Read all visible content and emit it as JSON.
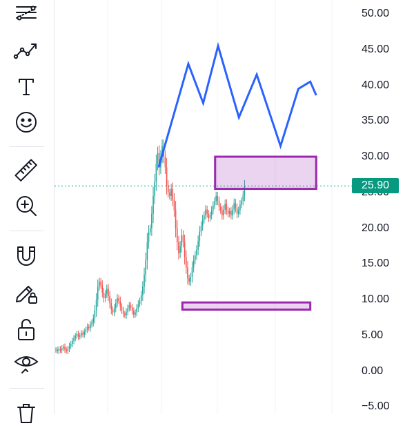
{
  "toolbar": {
    "tools": [
      {
        "name": "trend-line-tool-icon"
      },
      {
        "name": "pattern-tool-icon"
      },
      {
        "name": "text-tool-icon"
      },
      {
        "name": "emoji-tool-icon"
      },
      {
        "name": "measure-ruler-icon"
      },
      {
        "name": "zoom-in-icon"
      },
      {
        "name": "magnet-icon"
      },
      {
        "name": "lock-drawing-icon"
      },
      {
        "name": "unlock-icon"
      },
      {
        "name": "eye-visibility-icon"
      },
      {
        "name": "trash-icon"
      }
    ]
  },
  "price_axis": {
    "labels": [
      "50.00",
      "45.00",
      "40.00",
      "35.00",
      "30.00",
      "25.00",
      "20.00",
      "15.00",
      "10.00",
      "5.00",
      "0.00",
      "−5.00"
    ],
    "last_price": "25.90"
  },
  "colors": {
    "up": "#26a69a",
    "down": "#ef5350",
    "drawing_line": "#2962ff",
    "zone_border": "#9c27b0",
    "zone_fill": "rgba(156,39,176,0.2)",
    "last_price": "#089981",
    "grid": "#f0f3fa",
    "icon": "#131722"
  },
  "chart_data": {
    "type": "candlestick",
    "ylim": [
      -6,
      52
    ],
    "last_price": 25.9,
    "closes": [
      3.0,
      2.8,
      3.1,
      2.9,
      3.2,
      3.4,
      3.0,
      2.8,
      3.1,
      3.5,
      3.8,
      4.2,
      4.6,
      4.9,
      5.2,
      4.8,
      5.0,
      5.3,
      5.1,
      5.5,
      5.8,
      6.2,
      6.0,
      6.5,
      6.8,
      7.4,
      8.5,
      10.0,
      11.8,
      12.5,
      12.0,
      11.0,
      10.2,
      10.8,
      11.5,
      10.5,
      9.5,
      8.6,
      8.2,
      8.8,
      9.5,
      10.2,
      9.8,
      9.0,
      8.5,
      8.0,
      7.8,
      8.3,
      8.8,
      9.2,
      8.9,
      8.4,
      7.9,
      8.2,
      8.8,
      9.4,
      9.8,
      10.6,
      11.8,
      13.5,
      15.5,
      18.0,
      19.5,
      20.0,
      22.0,
      24.5,
      26.5,
      29.0,
      30.5,
      28.5,
      30.0,
      31.5,
      30.0,
      28.5,
      26.0,
      25.0,
      24.5,
      25.5,
      24.0,
      22.5,
      20.0,
      18.0,
      16.5,
      17.5,
      19.0,
      18.0,
      16.0,
      14.5,
      13.0,
      12.5,
      13.2,
      14.5,
      15.5,
      16.2,
      17.0,
      18.2,
      19.5,
      20.3,
      21.2,
      21.8,
      22.6,
      22.0,
      21.4,
      21.8,
      22.5,
      23.2,
      23.8,
      24.5,
      23.8,
      23.0,
      22.5,
      21.8,
      22.6,
      23.4,
      22.5,
      22.0,
      22.4,
      21.8,
      22.6,
      23.5,
      22.8,
      22.0,
      22.5,
      23.3,
      23.8,
      24.6,
      25.9
    ]
  },
  "drawings": {
    "zigzag": [
      [
        35,
        28.5
      ],
      [
        45,
        43
      ],
      [
        50,
        37.5
      ],
      [
        55,
        45.5
      ],
      [
        62,
        35.5
      ],
      [
        68,
        41.5
      ],
      [
        76,
        31.5
      ],
      [
        82,
        39.5
      ],
      [
        86,
        40.5
      ],
      [
        88,
        38.6
      ]
    ],
    "zones": [
      {
        "name": "supply-zone-rectangle",
        "x0": 54,
        "x1": 88,
        "y0": 25.5,
        "y1": 30.0
      },
      {
        "name": "demand-zone-rectangle",
        "x0": 43,
        "x1": 86,
        "y0": 8.6,
        "y1": 9.6
      }
    ]
  }
}
